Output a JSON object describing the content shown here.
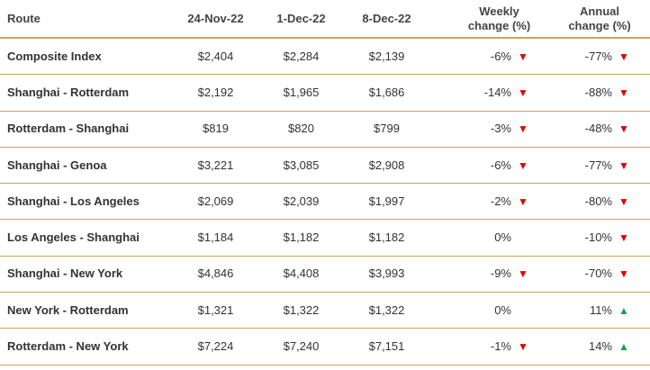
{
  "header": {
    "route": "Route",
    "d1": "24-Nov-22",
    "d2": "1-Dec-22",
    "d3": "8-Dec-22",
    "weekly_l1": "Weekly",
    "weekly_l2": "change (%)",
    "annual_l1": "Annual",
    "annual_l2": "change (%)"
  },
  "rows": [
    {
      "route": "Composite Index",
      "d1": "$2,404",
      "d2": "$2,284",
      "d3": "$2,139",
      "weekly": "-6%",
      "weekly_dir": "down",
      "annual": "-77%",
      "annual_dir": "down"
    },
    {
      "route": "Shanghai - Rotterdam",
      "d1": "$2,192",
      "d2": "$1,965",
      "d3": "$1,686",
      "weekly": "-14%",
      "weekly_dir": "down",
      "annual": "-88%",
      "annual_dir": "down"
    },
    {
      "route": "Rotterdam - Shanghai",
      "d1": "$819",
      "d2": "$820",
      "d3": "$799",
      "weekly": "-3%",
      "weekly_dir": "down",
      "annual": "-48%",
      "annual_dir": "down"
    },
    {
      "route": "Shanghai - Genoa",
      "d1": "$3,221",
      "d2": "$3,085",
      "d3": "$2,908",
      "weekly": "-6%",
      "weekly_dir": "down",
      "annual": "-77%",
      "annual_dir": "down"
    },
    {
      "route": "Shanghai - Los Angeles",
      "d1": "$2,069",
      "d2": "$2,039",
      "d3": "$1,997",
      "weekly": "-2%",
      "weekly_dir": "down",
      "annual": "-80%",
      "annual_dir": "down"
    },
    {
      "route": "Los Angeles - Shanghai",
      "d1": "$1,184",
      "d2": "$1,182",
      "d3": "$1,182",
      "weekly": "0%",
      "weekly_dir": "none",
      "annual": "-10%",
      "annual_dir": "down"
    },
    {
      "route": "Shanghai - New York",
      "d1": "$4,846",
      "d2": "$4,408",
      "d3": "$3,993",
      "weekly": "-9%",
      "weekly_dir": "down",
      "annual": "-70%",
      "annual_dir": "down"
    },
    {
      "route": "New York - Rotterdam",
      "d1": "$1,321",
      "d2": "$1,322",
      "d3": "$1,322",
      "weekly": "0%",
      "weekly_dir": "none",
      "annual": "11%",
      "annual_dir": "up"
    },
    {
      "route": "Rotterdam - New York",
      "d1": "$7,224",
      "d2": "$7,240",
      "d3": "$7,151",
      "weekly": "-1%",
      "weekly_dir": "down",
      "annual": "14%",
      "annual_dir": "up"
    }
  ],
  "colors": {
    "down": "#e00000",
    "up": "#1aa24a",
    "rule": "#c9a55c"
  },
  "icons": {
    "down": "triangle-down-icon",
    "up": "triangle-up-icon"
  }
}
